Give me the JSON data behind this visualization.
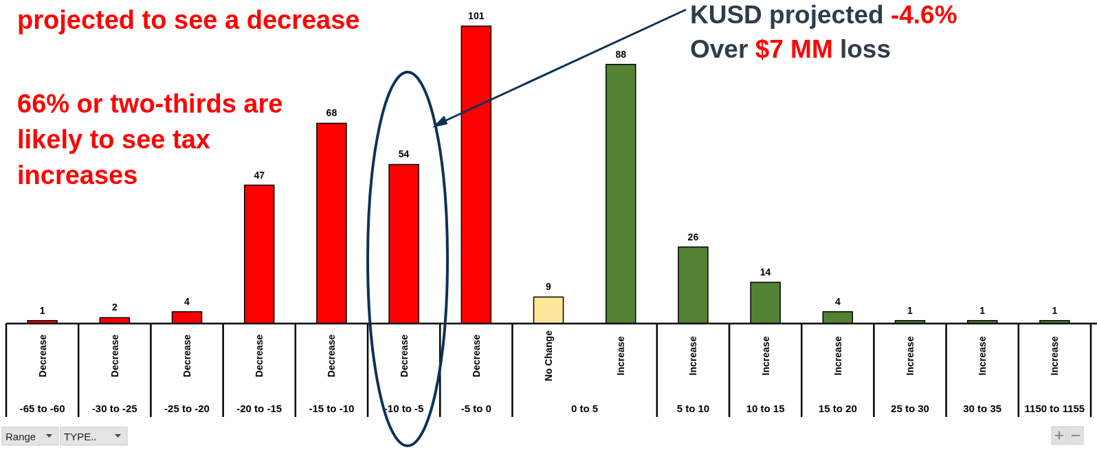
{
  "chart_data": {
    "type": "bar",
    "categories": [
      "-65 to -60",
      "-30 to -25",
      "-25 to -20",
      "-20 to -15",
      "-15 to -10",
      "-10 to -5",
      "-5 to 0",
      "0 to 5",
      null,
      "5 to 10",
      "10 to 15",
      "15 to 20",
      "25 to 30",
      "30 to 35",
      "1150 to 1155"
    ],
    "series": [
      {
        "name": "Decrease",
        "color": "#ff0000",
        "values": [
          1,
          2,
          4,
          47,
          68,
          54,
          101,
          null,
          null,
          null,
          null,
          null,
          null,
          null,
          null
        ]
      },
      {
        "name": "No Change",
        "color": "#ffe699",
        "values": [
          null,
          null,
          null,
          null,
          null,
          null,
          null,
          9,
          null,
          null,
          null,
          null,
          null,
          null,
          null
        ]
      },
      {
        "name": "Increase",
        "color": "#548235",
        "values": [
          null,
          null,
          null,
          null,
          null,
          null,
          null,
          null,
          88,
          26,
          14,
          4,
          1,
          1,
          1
        ]
      }
    ],
    "data_labels": true,
    "annotations": [
      "projected to see a decrease",
      "66% or two-thirds are likely to see tax increases",
      "KUSD projected",
      "-4.6%",
      "Over",
      "$7 MM",
      "loss",
      "Range",
      "TYPE.."
    ]
  }
}
